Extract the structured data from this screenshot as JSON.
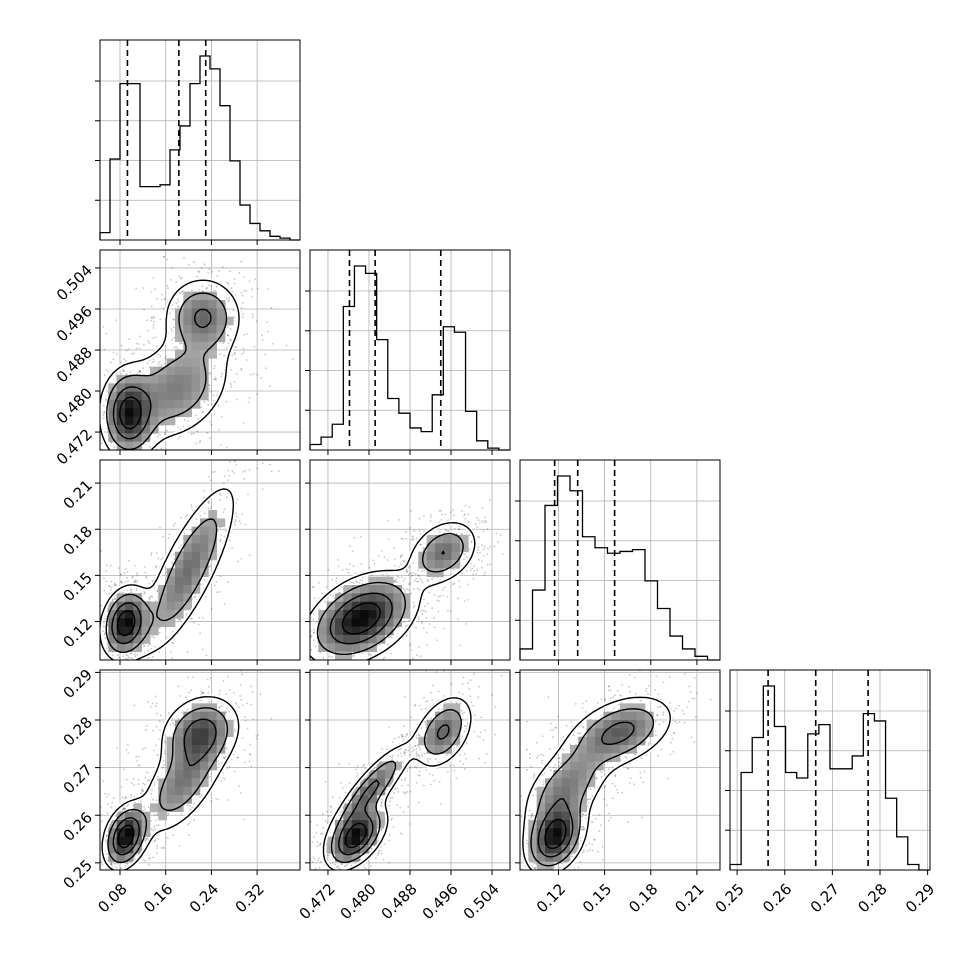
{
  "chart_data": {
    "type": "corner",
    "title": "",
    "grid": true,
    "variables": [
      {
        "range": [
          0.045,
          0.395
        ],
        "ticks": [
          0.08,
          0.16,
          0.24,
          0.32
        ],
        "tick_labels": [
          "0.08",
          "0.16",
          "0.24",
          "0.32"
        ],
        "quantiles": [
          0.093,
          0.183,
          0.23
        ],
        "hist": [
          0.04,
          0.44,
          0.85,
          0.85,
          0.29,
          0.29,
          0.3,
          0.49,
          0.62,
          0.85,
          1.0,
          0.93,
          0.73,
          0.43,
          0.19,
          0.09,
          0.05,
          0.02,
          0.01,
          0.0
        ]
      },
      {
        "range": [
          0.4685,
          0.5075
        ],
        "ticks": [
          0.472,
          0.48,
          0.488,
          0.496,
          0.504
        ],
        "tick_labels": [
          "0.472",
          "0.480",
          "0.488",
          "0.496",
          "0.504"
        ],
        "quantiles": [
          0.4762,
          0.4812,
          0.494
        ],
        "hist": [
          0.03,
          0.07,
          0.14,
          0.78,
          1.0,
          0.96,
          0.6,
          0.28,
          0.2,
          0.12,
          0.1,
          0.3,
          0.67,
          0.64,
          0.21,
          0.05,
          0.01,
          0.0
        ]
      },
      {
        "range": [
          0.095,
          0.225
        ],
        "ticks": [
          0.12,
          0.15,
          0.18,
          0.21
        ],
        "tick_labels": [
          "0.12",
          "0.15",
          "0.18",
          "0.21"
        ],
        "quantiles": [
          0.1175,
          0.1325,
          0.1565
        ],
        "hist": [
          0.06,
          0.38,
          0.84,
          1.0,
          0.92,
          0.67,
          0.61,
          0.58,
          0.59,
          0.6,
          0.43,
          0.28,
          0.13,
          0.06,
          0.02,
          0.0
        ]
      },
      {
        "range": [
          0.2485,
          0.2905
        ],
        "ticks": [
          0.25,
          0.26,
          0.27,
          0.28,
          0.29
        ],
        "tick_labels": [
          "0.25",
          "0.26",
          "0.27",
          "0.28",
          "0.29"
        ],
        "quantiles": [
          0.2565,
          0.2665,
          0.2775
        ],
        "hist": [
          0.03,
          0.53,
          0.72,
          1.0,
          0.78,
          0.53,
          0.5,
          0.74,
          0.79,
          0.55,
          0.55,
          0.62,
          0.85,
          0.81,
          0.39,
          0.18,
          0.03,
          0.0
        ]
      }
    ],
    "pair_modes": {
      "1_0": [
        {
          "center": [
            0.095,
            0.4755
          ],
          "spread": [
            0.025,
            0.0045
          ],
          "weight": 1.0,
          "rho": 0.0
        },
        {
          "center": [
            0.18,
            0.4805
          ],
          "spread": [
            0.05,
            0.0055
          ],
          "weight": 0.55,
          "rho": 0.3
        },
        {
          "center": [
            0.225,
            0.4945
          ],
          "spread": [
            0.035,
            0.004
          ],
          "weight": 0.65,
          "rho": 0.0
        }
      ],
      "2_0": [
        {
          "center": [
            0.09,
            0.119
          ],
          "spread": [
            0.022,
            0.012
          ],
          "weight": 1.0,
          "rho": 0.2
        },
        {
          "center": [
            0.2,
            0.154
          ],
          "spread": [
            0.045,
            0.03
          ],
          "weight": 0.55,
          "rho": 0.8
        }
      ],
      "2_1": [
        {
          "center": [
            0.4785,
            0.122
          ],
          "spread": [
            0.0055,
            0.015
          ],
          "weight": 1.0,
          "rho": 0.4
        },
        {
          "center": [
            0.4945,
            0.165
          ],
          "spread": [
            0.0035,
            0.011
          ],
          "weight": 0.55,
          "rho": 0.3
        }
      ],
      "3_0": [
        {
          "center": [
            0.09,
            0.2555
          ],
          "spread": [
            0.02,
            0.0035
          ],
          "weight": 1.0,
          "rho": 0.3
        },
        {
          "center": [
            0.19,
            0.267
          ],
          "spread": [
            0.04,
            0.006
          ],
          "weight": 0.5,
          "rho": 0.6
        },
        {
          "center": [
            0.22,
            0.2775
          ],
          "spread": [
            0.035,
            0.004
          ],
          "weight": 0.65,
          "rho": 0.2
        }
      ],
      "3_1": [
        {
          "center": [
            0.4775,
            0.2555
          ],
          "spread": [
            0.003,
            0.0035
          ],
          "weight": 1.0,
          "rho": 0.5
        },
        {
          "center": [
            0.4805,
            0.2655
          ],
          "spread": [
            0.004,
            0.005
          ],
          "weight": 0.6,
          "rho": 0.85
        },
        {
          "center": [
            0.4945,
            0.2775
          ],
          "spread": [
            0.003,
            0.004
          ],
          "weight": 0.6,
          "rho": 0.4
        }
      ],
      "3_2": [
        {
          "center": [
            0.118,
            0.2555
          ],
          "spread": [
            0.01,
            0.004
          ],
          "weight": 1.0,
          "rho": 0.3
        },
        {
          "center": [
            0.125,
            0.266
          ],
          "spread": [
            0.015,
            0.005
          ],
          "weight": 0.5,
          "rho": 0.5
        },
        {
          "center": [
            0.16,
            0.2775
          ],
          "spread": [
            0.018,
            0.004
          ],
          "weight": 0.65,
          "rho": 0.4
        }
      ]
    }
  }
}
